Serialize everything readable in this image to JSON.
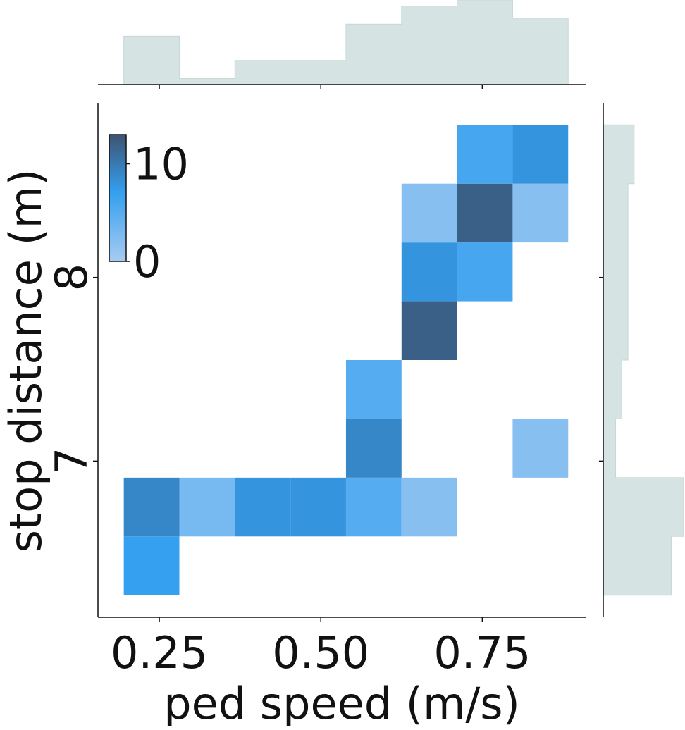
{
  "chart_data": {
    "type": "heatmap",
    "xlabel": "ped speed (m/s)",
    "ylabel": "stop distance (m)",
    "xlim": [
      0.155,
      0.91
    ],
    "ylim": [
      6.15,
      8.95
    ],
    "x_ticks": [
      {
        "value": 0.25,
        "label": "0.25"
      },
      {
        "value": 0.5,
        "label": "0.50"
      },
      {
        "value": 0.75,
        "label": "0.75"
      }
    ],
    "y_ticks": [
      {
        "value": 7,
        "label": "7"
      },
      {
        "value": 8,
        "label": "8"
      }
    ],
    "x_bin_edges": [
      0.195,
      0.281,
      0.367,
      0.453,
      0.539,
      0.625,
      0.711,
      0.797,
      0.883
    ],
    "y_bin_edges": [
      6.27,
      6.59,
      6.91,
      7.23,
      7.55,
      7.87,
      8.19,
      8.51,
      8.83
    ],
    "counts": [
      [
        7,
        9,
        0,
        0,
        0,
        0,
        0,
        0
      ],
      [
        0,
        3,
        0,
        0,
        0,
        0,
        0,
        0
      ],
      [
        0,
        8,
        0,
        0,
        0,
        0,
        0,
        0
      ],
      [
        0,
        8,
        0,
        0,
        0,
        0,
        0,
        0
      ],
      [
        0,
        5,
        9,
        5,
        0,
        0,
        0,
        0
      ],
      [
        0,
        2,
        0,
        0,
        12,
        8,
        2,
        0
      ],
      [
        0,
        0,
        0,
        0,
        0,
        6,
        12,
        6
      ],
      [
        0,
        0,
        2,
        0,
        0,
        0,
        2,
        8
      ]
    ],
    "colorbar": {
      "range": [
        0,
        13
      ],
      "ticks": [
        {
          "value": 0,
          "label": "0"
        },
        {
          "value": 10,
          "label": "10"
        }
      ],
      "placement": "top-left inset",
      "colors": [
        "#a8cbf2",
        "#339fef",
        "#3d5371"
      ]
    },
    "marginal_x": {
      "orientation": "top",
      "counts": [
        8,
        1,
        4,
        4,
        10,
        13,
        14,
        11
      ]
    },
    "marginal_y": {
      "orientation": "right",
      "counts": [
        11,
        13,
        2,
        3,
        4,
        4,
        4,
        5
      ]
    },
    "marginal_color": "#d5e3e3",
    "marginal_edge_color": "#c6d8d8",
    "grid": false
  }
}
